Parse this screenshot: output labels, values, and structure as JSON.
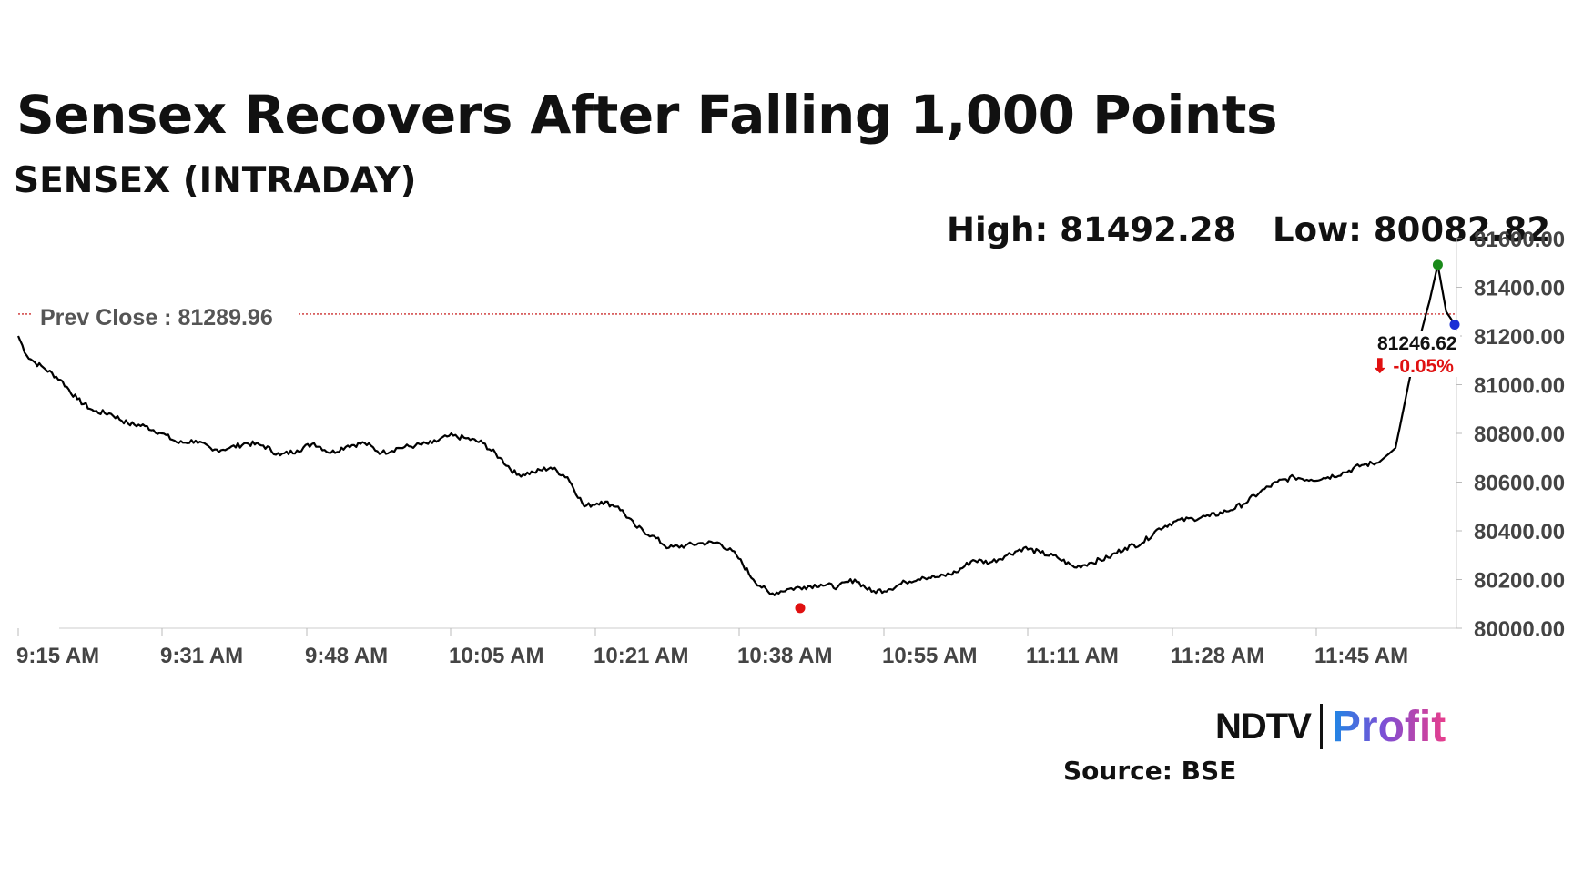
{
  "title": "Sensex Recovers After Falling 1,000 Points",
  "subtitle": "SENSEX (INTRADAY)",
  "high_label": "High: 81492.28",
  "low_label": "Low: 80082.82",
  "prev_close_label": "Prev Close : 81289.96",
  "last_price_label": "81246.62",
  "change_label": "⬇ -0.05%",
  "logo": {
    "ndtv": "NDTV",
    "profit": "Profit"
  },
  "source": "Source: BSE",
  "colors": {
    "line": "#000000",
    "prev_close": "#c00000",
    "high_marker": "#1a8a1a",
    "low_marker": "#e01010",
    "last_marker": "#1a2fd6",
    "change": "#e01010"
  },
  "chart_data": {
    "type": "line",
    "title": "Sensex Recovers After Falling 1,000 Points",
    "subtitle": "SENSEX (INTRADAY)",
    "xlabel": "",
    "ylabel": "",
    "x_ticks": [
      "9:15 AM",
      "9:31 AM",
      "9:48 AM",
      "10:05 AM",
      "10:21 AM",
      "10:38 AM",
      "10:55 AM",
      "11:11 AM",
      "11:28 AM",
      "11:45 AM"
    ],
    "y_ticks": [
      "80000.00",
      "80200.00",
      "80400.00",
      "80600.00",
      "80800.00",
      "81000.00",
      "81200.00",
      "81400.00",
      "81600.00"
    ],
    "ylim": [
      80000,
      81600
    ],
    "xlim_minutes": [
      0,
      170
    ],
    "prev_close": 81289.96,
    "high": 81492.28,
    "low": 80082.82,
    "last": 81246.62,
    "change_pct": -0.05,
    "grid": false,
    "series": [
      {
        "values": [
          [
            0,
            81200
          ],
          [
            1,
            81120
          ],
          [
            2,
            81090
          ],
          [
            3,
            81070
          ],
          [
            5,
            81020
          ],
          [
            7,
            80940
          ],
          [
            9,
            80890
          ],
          [
            11,
            80880
          ],
          [
            13,
            80840
          ],
          [
            15,
            80830
          ],
          [
            17,
            80800
          ],
          [
            19,
            80760
          ],
          [
            21,
            80770
          ],
          [
            23,
            80730
          ],
          [
            25,
            80740
          ],
          [
            27,
            80760
          ],
          [
            29,
            80750
          ],
          [
            31,
            80710
          ],
          [
            33,
            80730
          ],
          [
            35,
            80760
          ],
          [
            37,
            80720
          ],
          [
            39,
            80750
          ],
          [
            41,
            80760
          ],
          [
            43,
            80720
          ],
          [
            45,
            80740
          ],
          [
            47,
            80750
          ],
          [
            49,
            80760
          ],
          [
            51,
            80790
          ],
          [
            53,
            80780
          ],
          [
            55,
            80760
          ],
          [
            57,
            80700
          ],
          [
            59,
            80630
          ],
          [
            61,
            80640
          ],
          [
            63,
            80660
          ],
          [
            65,
            80620
          ],
          [
            67,
            80500
          ],
          [
            69,
            80520
          ],
          [
            71,
            80500
          ],
          [
            73,
            80420
          ],
          [
            75,
            80380
          ],
          [
            77,
            80330
          ],
          [
            79,
            80340
          ],
          [
            81,
            80350
          ],
          [
            83,
            80350
          ],
          [
            85,
            80300
          ],
          [
            87,
            80200
          ],
          [
            89,
            80140
          ],
          [
            91,
            80160
          ],
          [
            93,
            80170
          ],
          [
            95,
            80180
          ],
          [
            97,
            80170
          ],
          [
            99,
            80200
          ],
          [
            101,
            80150
          ],
          [
            103,
            80160
          ],
          [
            105,
            80190
          ],
          [
            107,
            80210
          ],
          [
            109,
            80210
          ],
          [
            111,
            80230
          ],
          [
            113,
            80280
          ],
          [
            115,
            80270
          ],
          [
            117,
            80300
          ],
          [
            119,
            80330
          ],
          [
            121,
            80310
          ],
          [
            123,
            80290
          ],
          [
            125,
            80250
          ],
          [
            127,
            80270
          ],
          [
            129,
            80290
          ],
          [
            131,
            80330
          ],
          [
            133,
            80350
          ],
          [
            135,
            80410
          ],
          [
            137,
            80440
          ],
          [
            139,
            80450
          ],
          [
            141,
            80460
          ],
          [
            143,
            80480
          ],
          [
            145,
            80510
          ],
          [
            147,
            80560
          ],
          [
            149,
            80600
          ],
          [
            151,
            80620
          ],
          [
            153,
            80610
          ],
          [
            155,
            80620
          ],
          [
            157,
            80640
          ],
          [
            159,
            80670
          ],
          [
            161,
            80680
          ],
          [
            163,
            80740
          ],
          [
            165,
            81080
          ],
          [
            167,
            81340
          ],
          [
            168,
            81492
          ],
          [
            169,
            81300
          ],
          [
            170,
            81247
          ]
        ]
      }
    ]
  }
}
